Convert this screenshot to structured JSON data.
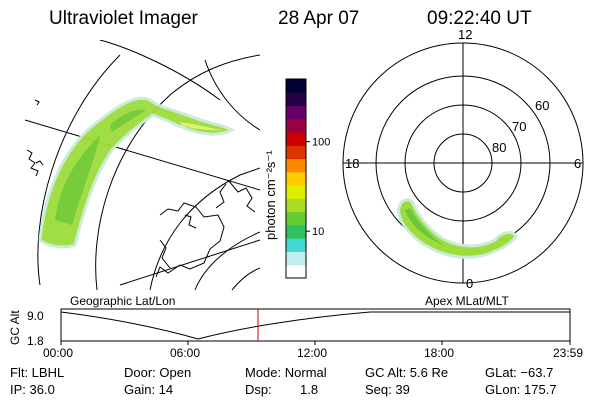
{
  "header": {
    "title": "Ultraviolet Imager",
    "date": "28 Apr 07",
    "time": "09:22:40 UT"
  },
  "geo_panel": {
    "label": "Geographic Lat/Lon"
  },
  "polar_panel": {
    "label": "Apex MLat/MLT",
    "mlt_labels": {
      "top": "12",
      "left": "18",
      "right": "6",
      "bottom": "0"
    },
    "lat_labels": [
      "60",
      "70",
      "80"
    ]
  },
  "colorbar": {
    "unit_label": "photon cm⁻²s⁻¹",
    "ticks": [
      {
        "label": "100",
        "value": 100
      },
      {
        "label": "10",
        "value": 10
      }
    ],
    "range": [
      3,
      500
    ],
    "scale": "log",
    "colors": [
      "#ffffff",
      "#bfeef0",
      "#40d8d0",
      "#30c060",
      "#66cc33",
      "#aadd22",
      "#ddee00",
      "#ffcc00",
      "#ff8800",
      "#dd3300",
      "#cc0000",
      "#990044",
      "#660066",
      "#220044",
      "#000033"
    ]
  },
  "orbit_plot": {
    "ylabel": "GC Alt",
    "y_ticks": [
      "9.0",
      "1.8"
    ],
    "x_ticks": [
      "00:00",
      "06:00",
      "12:00",
      "18:00",
      "23:59"
    ],
    "current_time_marker": "09:22"
  },
  "info": {
    "flt": "Flt: LBHL",
    "ip": "IP: 36.0",
    "door": "Door: Open",
    "gain": "Gain: 14",
    "mode": "Mode: Normal",
    "dsp_label": "Dsp:",
    "dsp_value": "1.8",
    "gc_alt": "GC Alt: 5.6 Re",
    "seq": "Seq: 39",
    "glat": "GLat: −63.7",
    "glon": "GLon: 175.7"
  }
}
